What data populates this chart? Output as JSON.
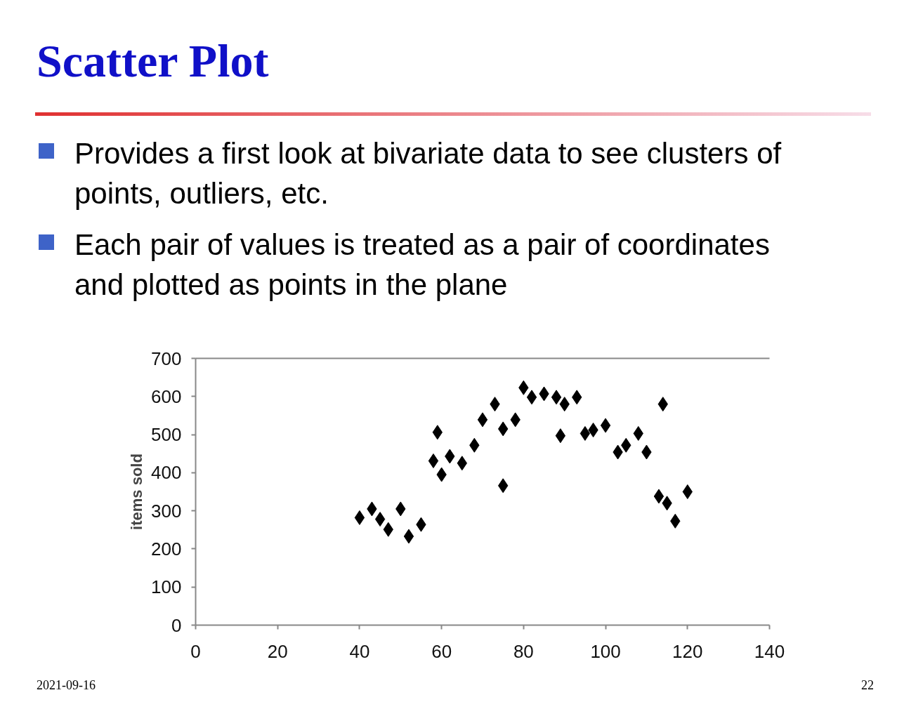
{
  "chart_data": {
    "type": "scatter",
    "title": "Scatter Plot",
    "annotations": [
      "Provides a first look at bivariate data to see clusters of points, outliers, etc.",
      "Each pair of values is treated as a pair of coordinates and plotted as points in the plane",
      "2021-09-16",
      "22"
    ],
    "ylabel": "items sold",
    "series": [
      {
        "color": "#000000",
        "x": [
          40,
          43,
          45,
          47,
          50,
          52,
          55,
          59,
          58,
          62,
          60,
          65,
          68,
          70,
          73,
          75,
          78,
          75,
          80,
          82,
          85,
          88,
          90,
          89,
          93,
          95,
          97,
          100,
          103,
          105,
          108,
          110,
          114,
          113,
          115,
          117,
          120
        ],
        "values": [
          282,
          305,
          278,
          251,
          305,
          233,
          264,
          506,
          431,
          443,
          395,
          425,
          472,
          539,
          580,
          515,
          539,
          366,
          623,
          598,
          607,
          598,
          580,
          497,
          598,
          503,
          512,
          524,
          454,
          472,
          503,
          454,
          580,
          338,
          320,
          273,
          350
        ]
      }
    ],
    "xlim": [
      0,
      140
    ],
    "ylim": [
      0,
      700
    ],
    "xticks": [
      0,
      20,
      40,
      60,
      80,
      100,
      120,
      140
    ],
    "yticks": [
      0,
      100,
      200,
      300,
      400,
      500,
      600,
      700
    ],
    "marker": "diamond",
    "grid": false
  }
}
